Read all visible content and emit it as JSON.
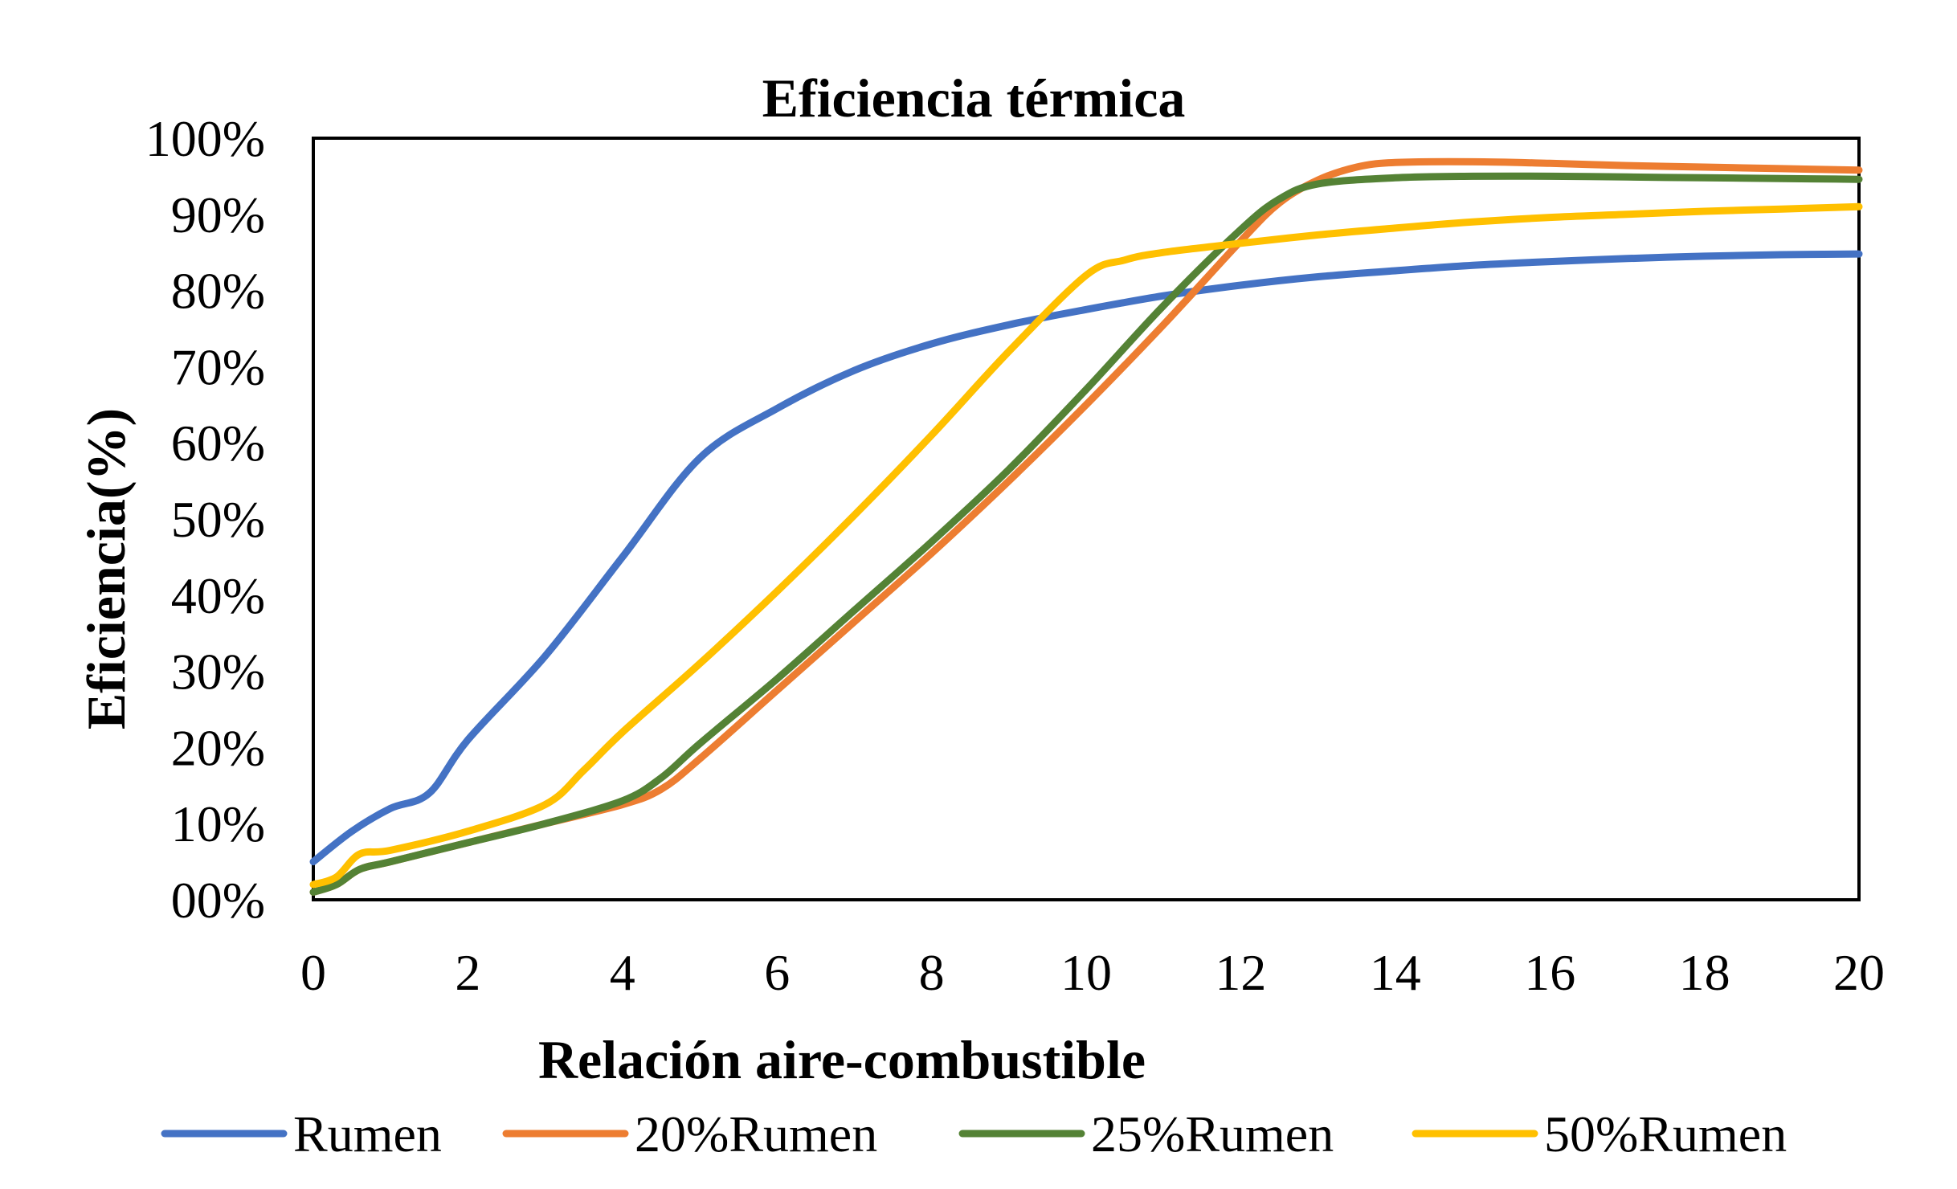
{
  "chart_data": {
    "type": "line",
    "title": "Eficiencia térmica",
    "xlabel": "Relación aire-combustible",
    "ylabel": "Eficiencia(%)",
    "xlim": [
      0,
      20
    ],
    "ylim": [
      0,
      1
    ],
    "x_ticks": [
      "0",
      "2",
      "4",
      "6",
      "8",
      "10",
      "12",
      "14",
      "16",
      "18",
      "20"
    ],
    "x_tick_values": [
      0,
      2,
      4,
      6,
      8,
      10,
      12,
      14,
      16,
      18,
      20
    ],
    "y_ticks": [
      "00%",
      "10%",
      "20%",
      "30%",
      "40%",
      "50%",
      "60%",
      "70%",
      "80%",
      "90%",
      "100%"
    ],
    "y_tick_values": [
      0,
      0.1,
      0.2,
      0.3,
      0.4,
      0.5,
      0.6,
      0.7,
      0.8,
      0.9,
      1.0
    ],
    "grid": false,
    "legend_position": "bottom",
    "series": [
      {
        "name": "Rumen",
        "color": "#4472C4",
        "points": [
          [
            0,
            0.05
          ],
          [
            0.5,
            0.09
          ],
          [
            1,
            0.12
          ],
          [
            1.5,
            0.14
          ],
          [
            2,
            0.21
          ],
          [
            3,
            0.32
          ],
          [
            4,
            0.45
          ],
          [
            5,
            0.58
          ],
          [
            6,
            0.645
          ],
          [
            7,
            0.695
          ],
          [
            8,
            0.73
          ],
          [
            9,
            0.755
          ],
          [
            10,
            0.775
          ],
          [
            11,
            0.793
          ],
          [
            12,
            0.807
          ],
          [
            13,
            0.818
          ],
          [
            14,
            0.826
          ],
          [
            15,
            0.833
          ],
          [
            16,
            0.838
          ],
          [
            17,
            0.842
          ],
          [
            18,
            0.845
          ],
          [
            19,
            0.847
          ],
          [
            20,
            0.848
          ]
        ]
      },
      {
        "name": "20%Rumen",
        "color": "#ED7D31",
        "points": [
          [
            0,
            0.01
          ],
          [
            0.3,
            0.02
          ],
          [
            0.6,
            0.04
          ],
          [
            1,
            0.05
          ],
          [
            2,
            0.075
          ],
          [
            3,
            0.1
          ],
          [
            4,
            0.125
          ],
          [
            4.5,
            0.145
          ],
          [
            5,
            0.185
          ],
          [
            6,
            0.275
          ],
          [
            7,
            0.365
          ],
          [
            8,
            0.455
          ],
          [
            9,
            0.55
          ],
          [
            10,
            0.65
          ],
          [
            11,
            0.755
          ],
          [
            12,
            0.865
          ],
          [
            12.5,
            0.915
          ],
          [
            13,
            0.945
          ],
          [
            13.5,
            0.962
          ],
          [
            14,
            0.968
          ],
          [
            15,
            0.969
          ],
          [
            16,
            0.967
          ],
          [
            17,
            0.964
          ],
          [
            18,
            0.962
          ],
          [
            19,
            0.96
          ],
          [
            20,
            0.958
          ]
        ]
      },
      {
        "name": "25%Rumen",
        "color": "#548235",
        "points": [
          [
            0,
            0.01
          ],
          [
            0.3,
            0.02
          ],
          [
            0.6,
            0.04
          ],
          [
            1,
            0.05
          ],
          [
            2,
            0.075
          ],
          [
            3,
            0.1
          ],
          [
            4,
            0.13
          ],
          [
            4.5,
            0.16
          ],
          [
            5,
            0.205
          ],
          [
            6,
            0.29
          ],
          [
            7,
            0.38
          ],
          [
            8,
            0.47
          ],
          [
            9,
            0.565
          ],
          [
            10,
            0.67
          ],
          [
            11,
            0.78
          ],
          [
            12,
            0.88
          ],
          [
            12.5,
            0.92
          ],
          [
            13,
            0.94
          ],
          [
            14,
            0.948
          ],
          [
            15,
            0.95
          ],
          [
            16,
            0.95
          ],
          [
            17,
            0.949
          ],
          [
            18,
            0.948
          ],
          [
            19,
            0.947
          ],
          [
            20,
            0.946
          ]
        ]
      },
      {
        "name": "50%Rumen",
        "color": "#FFC000",
        "points": [
          [
            0,
            0.02
          ],
          [
            0.3,
            0.03
          ],
          [
            0.6,
            0.06
          ],
          [
            1,
            0.065
          ],
          [
            2,
            0.09
          ],
          [
            3,
            0.125
          ],
          [
            3.5,
            0.17
          ],
          [
            4,
            0.22
          ],
          [
            5,
            0.31
          ],
          [
            6,
            0.405
          ],
          [
            7,
            0.505
          ],
          [
            8,
            0.61
          ],
          [
            9,
            0.72
          ],
          [
            10,
            0.82
          ],
          [
            10.5,
            0.84
          ],
          [
            11,
            0.85
          ],
          [
            12,
            0.862
          ],
          [
            13,
            0.873
          ],
          [
            14,
            0.882
          ],
          [
            15,
            0.89
          ],
          [
            16,
            0.896
          ],
          [
            17,
            0.9
          ],
          [
            18,
            0.904
          ],
          [
            19,
            0.907
          ],
          [
            20,
            0.91
          ]
        ]
      }
    ]
  }
}
